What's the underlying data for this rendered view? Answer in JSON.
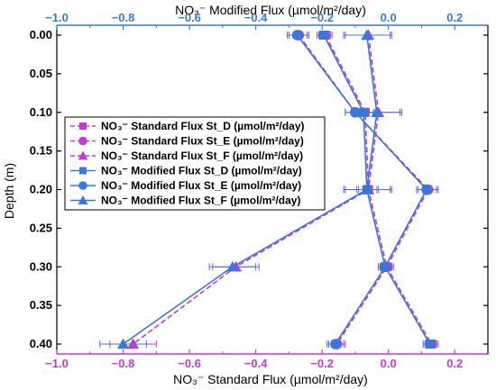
{
  "chart_data": {
    "type": "line",
    "top_title": "NO₃⁻ Modified Flux (µmol/m²/day)",
    "bottom_title": "NO₃⁻ Standard Flux (µmol/m²/day)",
    "ylabel": "Depth (m)",
    "x_bottom_lim": [
      -1.0,
      0.3
    ],
    "x_top_lim": [
      -1.0,
      0.3
    ],
    "ylim": [
      0.0,
      0.4
    ],
    "y_inverted": true,
    "x_bottom_ticks": [
      "−1.0",
      "−0.8",
      "−0.6",
      "−0.4",
      "−0.2",
      "0.0",
      "0.2"
    ],
    "x_top_ticks": [
      "−1.0",
      "−0.8",
      "−0.6",
      "−0.4",
      "−0.2",
      "0.0",
      "0.2"
    ],
    "y_ticks": [
      "0.00",
      "0.05",
      "0.10",
      "0.15",
      "0.20",
      "0.25",
      "0.30",
      "0.35",
      "0.40"
    ],
    "legend_position": "left-middle",
    "depths": [
      0.0,
      0.1,
      0.2,
      0.3,
      0.4
    ],
    "series": [
      {
        "name": "NO₃⁻ Standard Flux St_D (µmol/m²/day)",
        "axis": "bottom",
        "marker": "square",
        "dashed": true,
        "color": "#c23bd6",
        "values": [
          -0.19,
          -0.07,
          -0.06,
          -0.005,
          0.13
        ],
        "errors": [
          0.02,
          0.03,
          0.03,
          0.02,
          0.02
        ]
      },
      {
        "name": "NO₃⁻ Standard Flux St_E (µmol/m²/day)",
        "axis": "bottom",
        "marker": "circle",
        "dashed": true,
        "color": "#c23bd6",
        "values": [
          -0.27,
          -0.1,
          0.12,
          -0.005,
          -0.155
        ],
        "errors": [
          0.03,
          0.03,
          0.03,
          0.02,
          0.025
        ]
      },
      {
        "name": "NO₃⁻ Standard Flux St_F (µmol/m²/day)",
        "axis": "bottom",
        "marker": "triangle",
        "dashed": true,
        "color": "#c23bd6",
        "values": [
          -0.06,
          -0.03,
          -0.06,
          -0.46,
          -0.77
        ],
        "errors": [
          0.07,
          0.07,
          0.07,
          0.07,
          0.07
        ]
      },
      {
        "name": "NO₃⁻ Modified Flux St_D (µmol/m²/day)",
        "axis": "top",
        "marker": "square",
        "dashed": false,
        "color": "#3a78d8",
        "values": [
          -0.195,
          -0.075,
          -0.065,
          -0.01,
          0.125
        ],
        "errors": [
          0.02,
          0.03,
          0.03,
          0.02,
          0.02
        ]
      },
      {
        "name": "NO₃⁻ Modified Flux St_E (µmol/m²/day)",
        "axis": "top",
        "marker": "circle",
        "dashed": false,
        "color": "#3a78d8",
        "values": [
          -0.275,
          -0.1,
          0.115,
          -0.01,
          -0.16
        ],
        "errors": [
          0.03,
          0.03,
          0.03,
          0.02,
          0.025
        ]
      },
      {
        "name": "NO₃⁻ Modified Flux St_F (µmol/m²/day)",
        "axis": "top",
        "marker": "triangle",
        "dashed": false,
        "color": "#3a78d8",
        "values": [
          -0.065,
          -0.035,
          -0.065,
          -0.47,
          -0.8
        ],
        "errors": [
          0.07,
          0.07,
          0.07,
          0.07,
          0.07
        ]
      }
    ]
  }
}
